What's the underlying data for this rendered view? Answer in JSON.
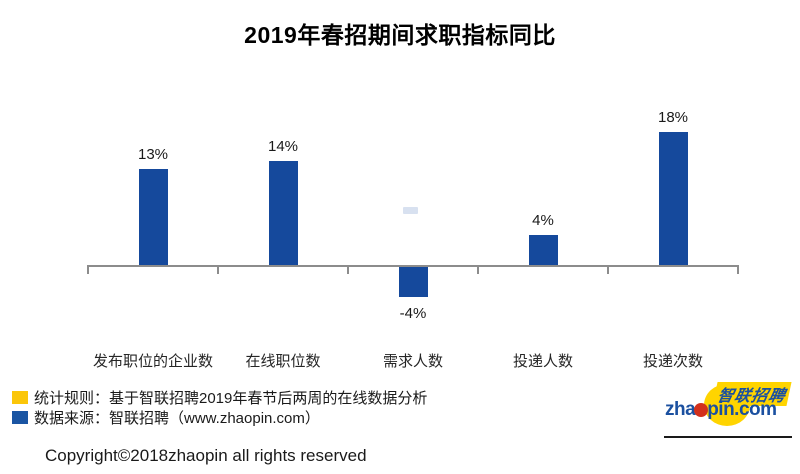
{
  "chart_data": {
    "type": "bar",
    "title": "2019年春招期间求职指标同比",
    "categories": [
      "发布职位的企业数",
      "在线职位数",
      "需求人数",
      "投递人数",
      "投递次数"
    ],
    "values": [
      13,
      14,
      -4,
      4,
      18
    ],
    "value_labels": [
      "13%",
      "14%",
      "-4%",
      "4%",
      "18%"
    ],
    "bar_color": "#15499C",
    "axis_color": "#8C8C8C",
    "value_label_color": "#1A1A1A",
    "ylim": [
      -8,
      22
    ],
    "grid": false,
    "legend_position": "none",
    "xlabel": "",
    "ylabel": ""
  },
  "notes": {
    "items": [
      {
        "swatch_color": "#FBC609",
        "label": "统计规则：基于智联招聘2019年春节后两周的在线数据分析"
      },
      {
        "swatch_color": "#1A55A3",
        "label": "数据来源：智联招聘（www.zhaopin.com）"
      }
    ]
  },
  "footer": {
    "copyright": "Copyright©2018zhaopin all rights reserved"
  },
  "logo": {
    "cn_text": "智联招聘",
    "domain_left": "zha",
    "domain_right": "pin.com",
    "colors": {
      "blue": "#1B50A0",
      "red": "#D2301C",
      "yellow": "#FFD400"
    }
  }
}
